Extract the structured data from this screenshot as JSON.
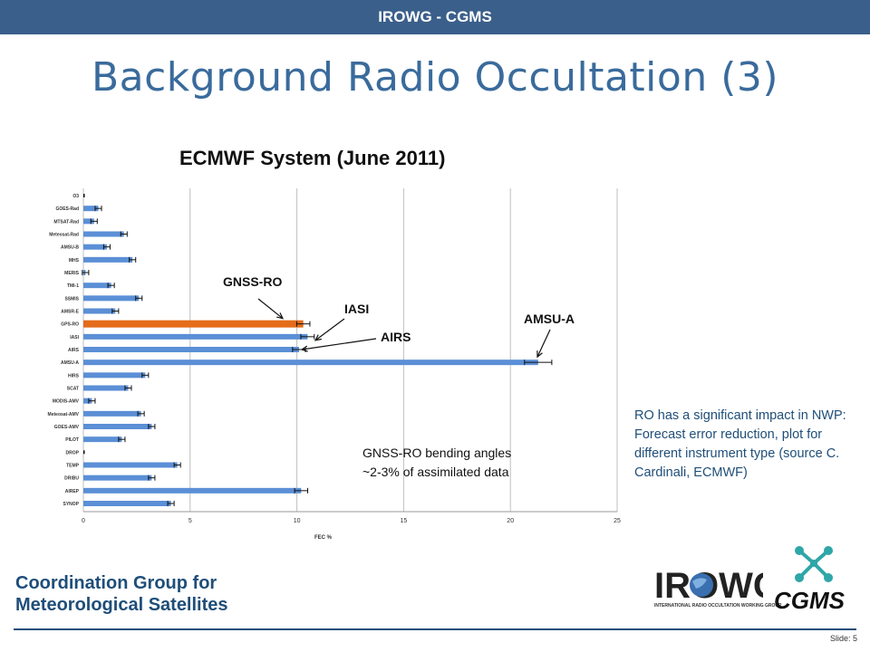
{
  "header": {
    "bar_text": "IROWG - CGMS"
  },
  "slide": {
    "title": "Background Radio Occultation (3)"
  },
  "chart_data": {
    "type": "bar",
    "orientation": "horizontal",
    "title": "ECMWF System (June 2011)",
    "xlabel": "FEC %",
    "xlim": [
      0,
      25
    ],
    "xticks": [
      "0",
      "5",
      "10",
      "15",
      "20",
      "25"
    ],
    "grid": true,
    "categories": [
      "O3",
      "GOES-Rad",
      "MTSAT-Rad",
      "Meteosat-Rad",
      "AMSU-B",
      "MHS",
      "MERIS",
      "TMI-1",
      "SSMIS",
      "AMSR-E",
      "GPS-RO",
      "IASI",
      "AIRS",
      "AMSU-A",
      "HIRS",
      "SCAT",
      "MODIS-AMV",
      "Meteosat-AMV",
      "GOES-AMV",
      "PILOT",
      "DROP",
      "TEMP",
      "DRIBU",
      "AIREP",
      "SYNOP"
    ],
    "values": [
      0.0,
      0.7,
      0.5,
      1.9,
      1.1,
      2.3,
      0.1,
      1.3,
      2.6,
      1.5,
      10.3,
      10.5,
      10.1,
      21.3,
      2.9,
      2.1,
      0.4,
      2.7,
      3.2,
      1.8,
      0.0,
      4.4,
      3.2,
      10.2,
      4.1
    ],
    "highlight_category": "GPS-RO",
    "bar_color": "#5b8fd6",
    "highlight_color": "#e46c1a",
    "annotations": [
      {
        "text": "GNSS-RO",
        "target": "GPS-RO"
      },
      {
        "text": "IASI",
        "target": "IASI"
      },
      {
        "text": "AIRS",
        "target": "AIRS"
      },
      {
        "text": "AMSU-A",
        "target": "AMSU-A"
      }
    ],
    "note_lines": [
      "GNSS-RO bending angles",
      "~2-3% of assimilated data"
    ]
  },
  "side_note": "RO has a significant impact in NWP: Forecast error reduction, plot for different instrument type (source C. Cardinali, ECMWF)",
  "footer": {
    "org_line1": "Coordination Group for",
    "org_line2": "Meteorological Satellites",
    "slide_label": "Slide: 5",
    "logo_irowg": "IROWG",
    "logo_irowg_sub": "INTERNATIONAL RADIO OCCULTATION WORKING GROUP",
    "logo_cgms": "CGMS"
  }
}
